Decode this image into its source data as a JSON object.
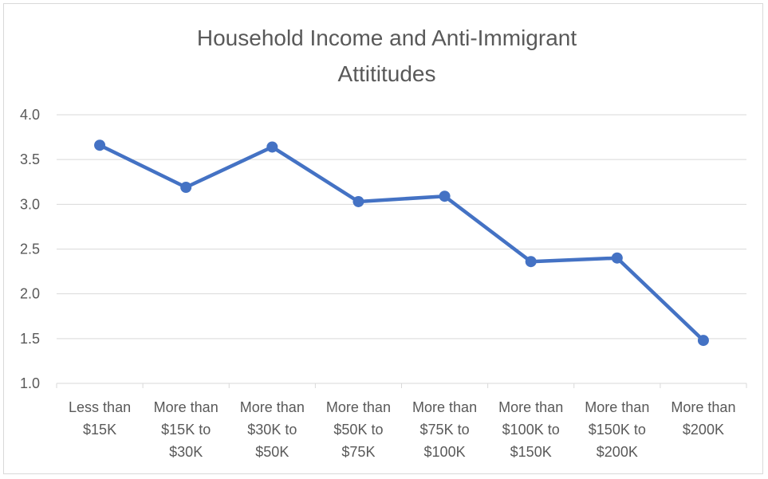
{
  "chart_data": {
    "type": "line",
    "title_lines": [
      "Household Income and Anti-Immigrant",
      "Attititudes"
    ],
    "categories": [
      [
        "Less than",
        "$15K"
      ],
      [
        "More than",
        "$15K to",
        "$30K"
      ],
      [
        "More than",
        "$30K to",
        "$50K"
      ],
      [
        "More than",
        "$50K to",
        "$75K"
      ],
      [
        "More than",
        "$75K to",
        "$100K"
      ],
      [
        "More than",
        "$100K to",
        "$150K"
      ],
      [
        "More than",
        "$150K to",
        "$200K"
      ],
      [
        "More than",
        "$200K"
      ]
    ],
    "series": [
      {
        "values": [
          3.66,
          3.19,
          3.64,
          3.03,
          3.09,
          2.36,
          2.4,
          1.48
        ]
      }
    ],
    "ylim": [
      1.0,
      4.0
    ],
    "yticks": [
      "1.0",
      "1.5",
      "2.0",
      "2.5",
      "3.0",
      "3.5",
      "4.0"
    ],
    "grid": true,
    "legend": "none",
    "colors": {
      "line": "#4472c4",
      "grid": "#d9d9d9",
      "text": "#595959"
    }
  }
}
